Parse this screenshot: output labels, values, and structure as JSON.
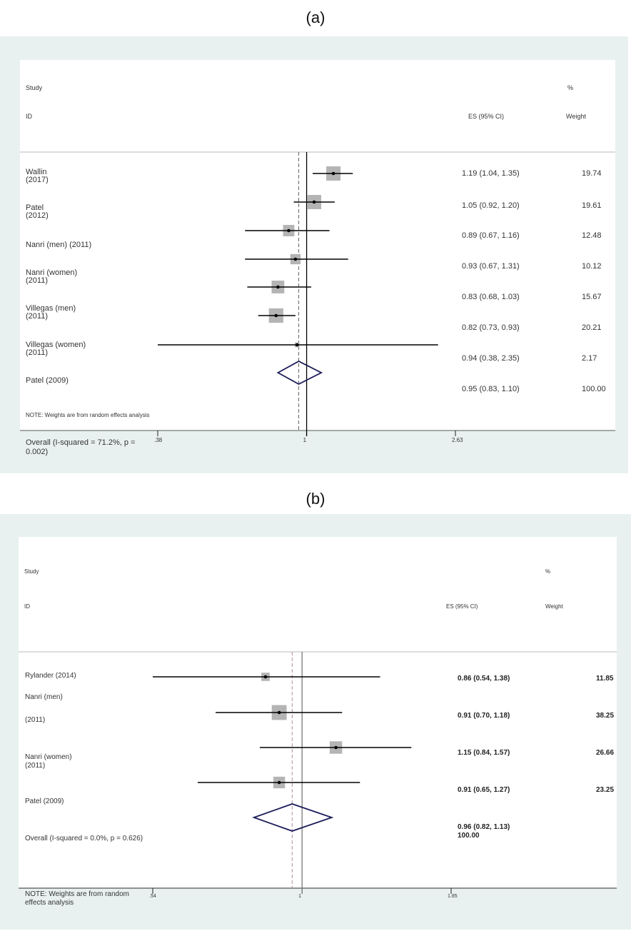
{
  "chart_data": [
    {
      "type": "forest",
      "panel_label": "(a)",
      "header": {
        "study": "Study",
        "id": "ID",
        "es": "ES (95% CI)",
        "pct": "%",
        "weight": "Weight"
      },
      "studies": [
        {
          "label_line1": "Wallin",
          "label_line2": "(2017)",
          "es": 1.19,
          "lo": 1.04,
          "hi": 1.35,
          "es_text": "1.19 (1.04, 1.35)",
          "weight": 19.74,
          "weight_text": "19.74"
        },
        {
          "label_line1": "Patel",
          "label_line2": "(2012)",
          "es": 1.05,
          "lo": 0.92,
          "hi": 1.2,
          "es_text": "1.05 (0.92, 1.20)",
          "weight": 19.61,
          "weight_text": "19.61"
        },
        {
          "label_line1": "Nanri (men) (2011)",
          "label_line2": "",
          "es": 0.89,
          "lo": 0.67,
          "hi": 1.16,
          "es_text": "0.89 (0.67, 1.16)",
          "weight": 12.48,
          "weight_text": "12.48"
        },
        {
          "label_line1": "Nanri (women)",
          "label_line2": "(2011)",
          "es": 0.93,
          "lo": 0.67,
          "hi": 1.31,
          "es_text": "0.93 (0.67, 1.31)",
          "weight": 10.12,
          "weight_text": "10.12"
        },
        {
          "label_line1": "Villegas (men)",
          "label_line2": "(2011)",
          "es": 0.83,
          "lo": 0.68,
          "hi": 1.03,
          "es_text": "0.83 (0.68, 1.03)",
          "weight": 15.67,
          "weight_text": "15.67"
        },
        {
          "label_line1": "Villegas (women)",
          "label_line2": "(2011)",
          "es": 0.82,
          "lo": 0.73,
          "hi": 0.93,
          "es_text": "0.82 (0.73, 0.93)",
          "weight": 20.21,
          "weight_text": "20.21"
        },
        {
          "label_line1": "Patel (2009)",
          "label_line2": "",
          "es": 0.94,
          "lo": 0.38,
          "hi": 2.35,
          "es_text": "0.94 (0.38, 2.35)",
          "weight": 2.17,
          "weight_text": "2.17"
        }
      ],
      "overall": {
        "label_line1": "Overall  (I-squared  = 71.2%, p =",
        "label_line2": "0.002)",
        "es": 0.95,
        "lo": 0.83,
        "hi": 1.1,
        "es_text": "0.95 (0.83, 1.10)",
        "weight_text": "100.00"
      },
      "note": "NOTE:  Weights are from random effects analysis",
      "x_ticks": [
        {
          "value": 0.38,
          "label": ".38"
        },
        {
          "value": 1,
          "label": "1"
        },
        {
          "value": 2.63,
          "label": "2.63"
        }
      ],
      "xlim": [
        0.38,
        2.63
      ],
      "x_scale": "log",
      "null_line": 1,
      "colors": {
        "box": "#b4b4b4",
        "diamond": "#1c1c5a",
        "dashed": "#666666",
        "background": "#e8f0f0"
      }
    },
    {
      "type": "forest",
      "panel_label": "(b)",
      "header": {
        "study": "Study",
        "id": "ID",
        "es": "ES (95% CI)",
        "pct": "%",
        "weight": "Weight"
      },
      "studies": [
        {
          "label_line1": "Rylander (2014)",
          "label_line2": "",
          "es": 0.86,
          "lo": 0.54,
          "hi": 1.38,
          "es_text": "0.86 (0.54, 1.38)",
          "weight": 11.85,
          "weight_text": "11.85"
        },
        {
          "label_line1": "Nanri (men)",
          "label_line2": "(2011)",
          "es": 0.91,
          "lo": 0.7,
          "hi": 1.18,
          "es_text": "0.91 (0.70, 1.18)",
          "weight": 38.25,
          "weight_text": "38.25"
        },
        {
          "label_line1": "Nanri (women)",
          "label_line2": "(2011)",
          "es": 1.15,
          "lo": 0.84,
          "hi": 1.57,
          "es_text": "1.15 (0.84, 1.57)",
          "weight": 26.66,
          "weight_text": "26.66"
        },
        {
          "label_line1": "Patel (2009)",
          "label_line2": "",
          "es": 0.91,
          "lo": 0.65,
          "hi": 1.27,
          "es_text": "0.91 (0.65, 1.27)",
          "weight": 23.25,
          "weight_text": "23.25"
        }
      ],
      "overall": {
        "label_line1": "Overall   (I-squared = 0.0%, p = 0.626)",
        "label_line2": "",
        "es": 0.96,
        "lo": 0.82,
        "hi": 1.13,
        "es_text": "0.96 (0.82, 1.13)",
        "weight_text": "100.00"
      },
      "note_line1": "NOTE:  Weights are from random",
      "note_line2": "effects analysis",
      "x_ticks": [
        {
          "value": 0.54,
          "label": ".54"
        },
        {
          "value": 1,
          "label": "1"
        },
        {
          "value": 1.85,
          "label": "1.85"
        }
      ],
      "xlim": [
        0.54,
        1.85
      ],
      "x_scale": "log",
      "null_line": 1,
      "colors": {
        "box": "#b4b4b4",
        "diamond": "#1c1c5a",
        "dashed": "#b08aa0",
        "background": "#e8f0f0"
      }
    }
  ]
}
